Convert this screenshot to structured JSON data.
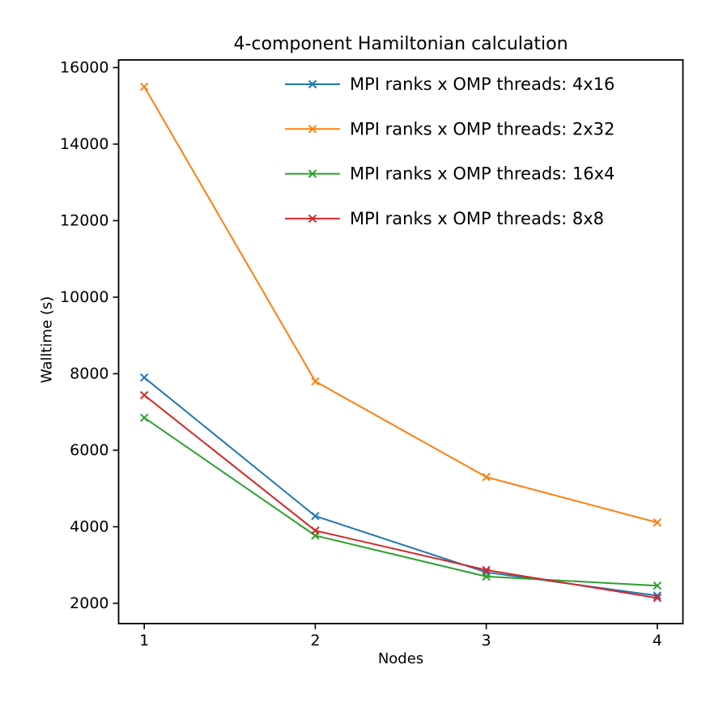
{
  "chart_data": {
    "type": "line",
    "title": "4-component Hamiltonian calculation",
    "xlabel": "Nodes",
    "ylabel": "Walltime (s)",
    "x": [
      1,
      2,
      3,
      4
    ],
    "series": [
      {
        "name": "MPI ranks x OMP threads: 4x16",
        "color": "#1f77b4",
        "values": [
          7900,
          4280,
          2810,
          2200
        ]
      },
      {
        "name": "MPI ranks x OMP threads: 2x32",
        "color": "#ff7f0e",
        "values": [
          15500,
          7800,
          5300,
          4110
        ]
      },
      {
        "name": "MPI ranks x OMP threads: 16x4",
        "color": "#2ca02c",
        "values": [
          6850,
          3770,
          2700,
          2460
        ]
      },
      {
        "name": "MPI ranks x OMP threads: 8x8",
        "color": "#d62728",
        "values": [
          7440,
          3900,
          2870,
          2140
        ]
      }
    ],
    "marker": "x",
    "xticks": [
      "1",
      "2",
      "3",
      "4"
    ],
    "xtick_values": [
      1,
      2,
      3,
      4
    ],
    "yticks": [
      "2000",
      "4000",
      "6000",
      "8000",
      "10000",
      "12000",
      "14000",
      "16000"
    ],
    "ytick_values": [
      2000,
      4000,
      6000,
      8000,
      10000,
      12000,
      14000,
      16000
    ],
    "xlim": [
      0.85,
      4.15
    ],
    "ylim": [
      1470,
      16200
    ],
    "grid": false,
    "legend_position": "upper right",
    "legend_frame": false,
    "axis_color": "#000000",
    "background_color": "#ffffff"
  }
}
